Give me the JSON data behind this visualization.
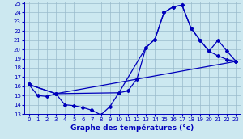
{
  "title": "Graphe des températures (°c)",
  "xlim": [
    -0.5,
    23.5
  ],
  "ylim": [
    13,
    25.2
  ],
  "xticks": [
    0,
    1,
    2,
    3,
    4,
    5,
    6,
    7,
    8,
    9,
    10,
    11,
    12,
    13,
    14,
    15,
    16,
    17,
    18,
    19,
    20,
    21,
    22,
    23
  ],
  "yticks": [
    13,
    14,
    15,
    16,
    17,
    18,
    19,
    20,
    21,
    22,
    23,
    24,
    25
  ],
  "bg_color": "#cce8f0",
  "grid_color": "#99bbcc",
  "line_color": "#0000bb",
  "line1_x": [
    0,
    1,
    2,
    3,
    4,
    5,
    6,
    7,
    8,
    9,
    10,
    11,
    12,
    13,
    14,
    15,
    16,
    17,
    18,
    19,
    20,
    21,
    22,
    23
  ],
  "line1_y": [
    16.2,
    15.0,
    14.9,
    15.2,
    14.0,
    13.9,
    13.7,
    13.4,
    12.9,
    13.8,
    15.3,
    15.5,
    16.8,
    20.2,
    21.1,
    24.0,
    24.6,
    24.8,
    22.3,
    21.0,
    19.8,
    19.3,
    18.9,
    18.7
  ],
  "line2_x": [
    0,
    3,
    10,
    13,
    14,
    15,
    16,
    17,
    18,
    19,
    20,
    21,
    22,
    23
  ],
  "line2_y": [
    16.2,
    15.2,
    15.3,
    20.2,
    21.1,
    24.0,
    24.6,
    24.8,
    22.3,
    21.0,
    19.8,
    21.0,
    19.8,
    18.7
  ],
  "line3_x": [
    0,
    3,
    23
  ],
  "line3_y": [
    16.2,
    15.2,
    18.7
  ]
}
